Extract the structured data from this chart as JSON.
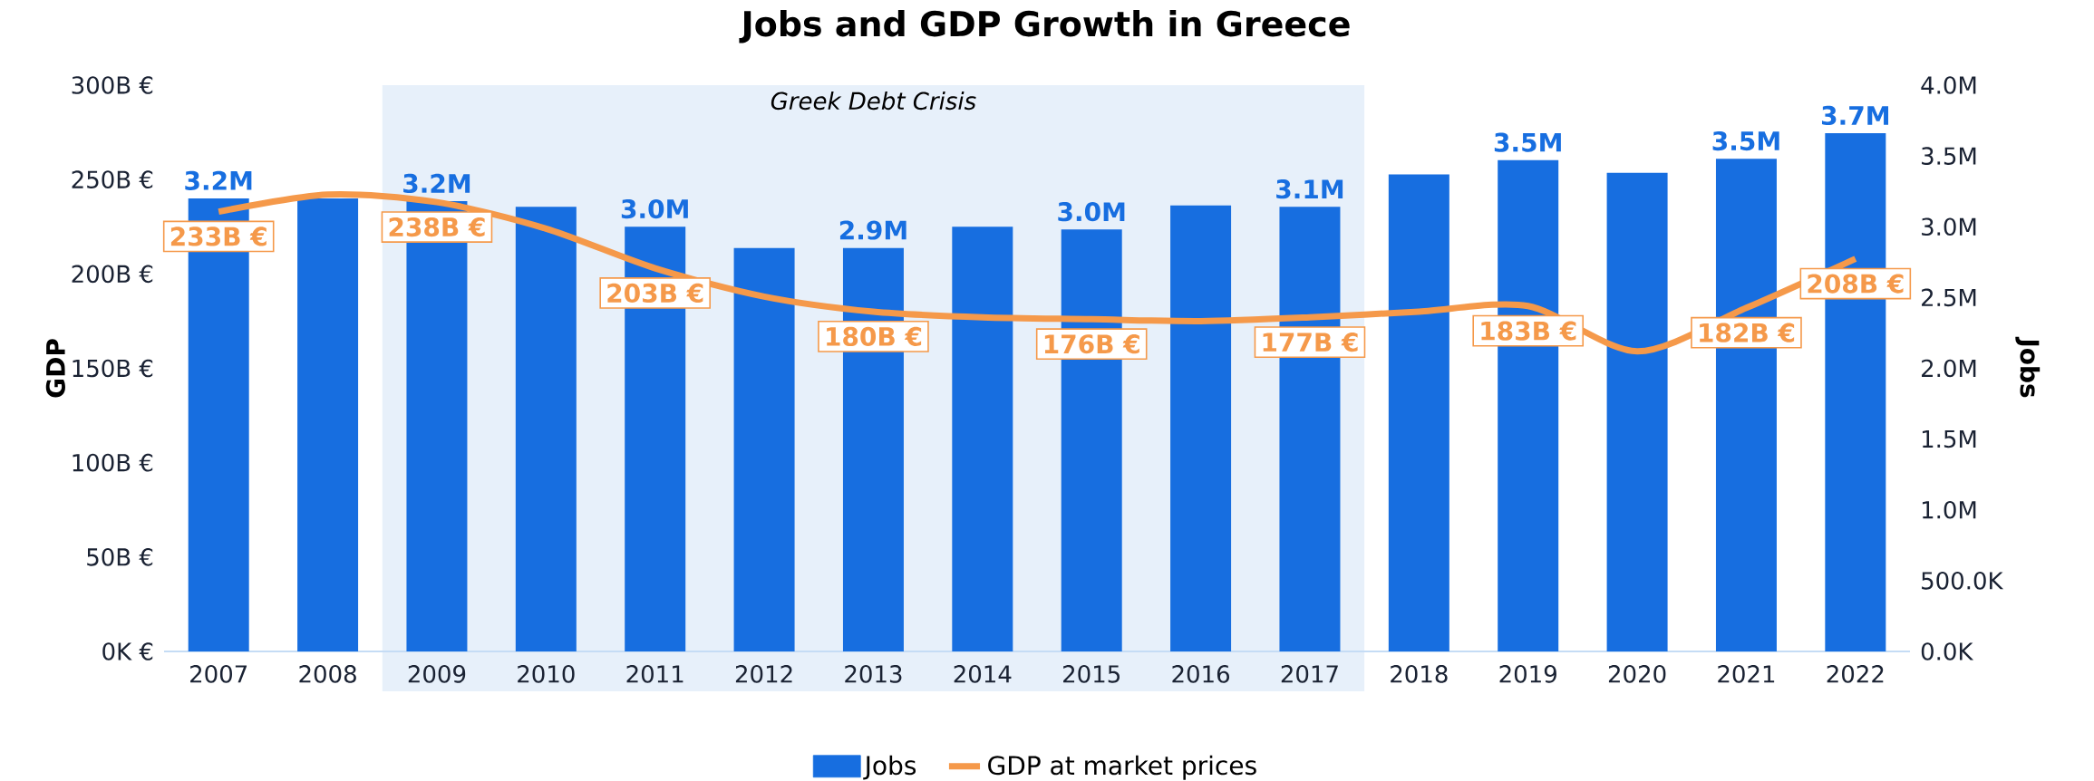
{
  "chart_data": {
    "type": "bar",
    "title": "Jobs and GDP Growth in Greece",
    "ylabel": "GDP",
    "y2label": "Jobs",
    "categories": [
      "2007",
      "2008",
      "2009",
      "2010",
      "2011",
      "2012",
      "2013",
      "2014",
      "2015",
      "2016",
      "2017",
      "2018",
      "2019",
      "2020",
      "2021",
      "2022"
    ],
    "series": [
      {
        "name": "Jobs",
        "axis": "y2",
        "color": "#176ee0",
        "values": [
          3200000,
          3200000,
          3180000,
          3140000,
          3000000,
          2850000,
          2850000,
          3000000,
          2980000,
          3150000,
          3140000,
          3370000,
          3470000,
          3380000,
          3480000,
          3660000
        ],
        "value_labels": [
          "3.2M",
          null,
          "3.2M",
          null,
          "3.0M",
          null,
          "2.9M",
          null,
          "3.0M",
          null,
          "3.1M",
          null,
          "3.5M",
          null,
          "3.5M",
          "3.7M"
        ]
      },
      {
        "name": "GDP at market prices",
        "type": "line",
        "color": "#f5994a",
        "values": [
          233,
          242,
          238,
          224,
          203,
          188,
          180,
          177,
          176,
          175,
          177,
          180,
          183,
          159,
          182,
          208
        ],
        "value_labels": [
          "233B €",
          null,
          "238B €",
          null,
          "203B €",
          null,
          "180B €",
          null,
          "176B €",
          null,
          "177B €",
          null,
          "183B €",
          null,
          "182B €",
          "208B €"
        ]
      }
    ],
    "ylim": [
      0,
      300
    ],
    "yticks": [
      {
        "value": 0,
        "label": "0K €"
      },
      {
        "value": 50,
        "label": "50B €"
      },
      {
        "value": 100,
        "label": "100B €"
      },
      {
        "value": 150,
        "label": "150B €"
      },
      {
        "value": 200,
        "label": "200B €"
      },
      {
        "value": 250,
        "label": "250B €"
      },
      {
        "value": 300,
        "label": "300B €"
      }
    ],
    "y2lim": [
      0,
      4000000
    ],
    "y2ticks": [
      {
        "value": 0,
        "label": "0.0K"
      },
      {
        "value": 500000,
        "label": "500.0K"
      },
      {
        "value": 1000000,
        "label": "1.0M"
      },
      {
        "value": 1500000,
        "label": "1.5M"
      },
      {
        "value": 2000000,
        "label": "2.0M"
      },
      {
        "value": 2500000,
        "label": "2.5M"
      },
      {
        "value": 3000000,
        "label": "3.0M"
      },
      {
        "value": 3500000,
        "label": "3.5M"
      },
      {
        "value": 4000000,
        "label": "4.0M"
      }
    ],
    "bands": [
      {
        "axis": "x",
        "from": "2009",
        "to": "2017",
        "label": "Greek Debt Crisis",
        "color": "#e7f0fa"
      }
    ],
    "legend": "bottom"
  }
}
